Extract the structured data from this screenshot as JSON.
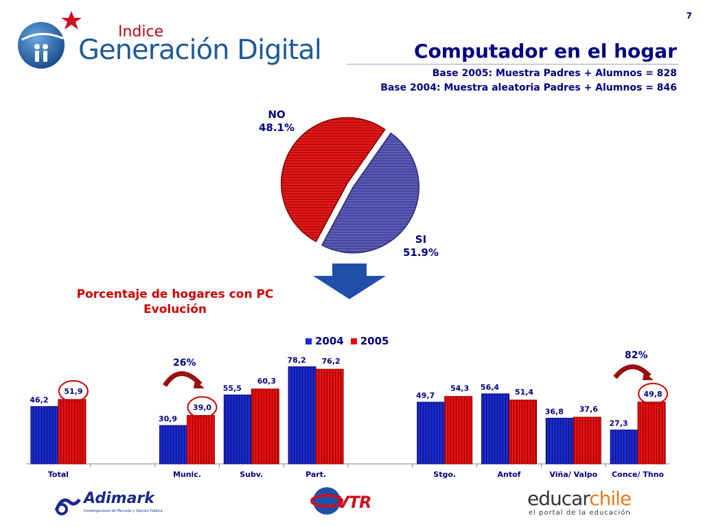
{
  "page": {
    "number": "7"
  },
  "header": {
    "logo_small": "Indice",
    "logo_big": "Generación Digital",
    "title": "Computador en el hogar",
    "subtitle_1": "Base 2005: Muestra Padres + Alumnos = 828",
    "subtitle_2": "Base 2004: Muestra aleatoria Padres + Alumnos = 846"
  },
  "pie": {
    "no_label": "NO",
    "no_value": "48.1%",
    "si_label": "SI",
    "si_value": "51.9%"
  },
  "bar_section": {
    "heading_1": "Porcentaje de hogares con PC",
    "heading_2": "Evolución",
    "growth_left": "26%",
    "growth_right": "82%"
  },
  "colors": {
    "series_2004": "#1a2ad0",
    "series_2005": "#e01010",
    "pie_no": "#5a5ab4",
    "pie_si": "#d81818",
    "title_navy": "#000080",
    "heading_red": "#cc0000"
  },
  "chart_data": [
    {
      "type": "pie",
      "slices": [
        {
          "label": "NO",
          "value": 48.1
        },
        {
          "label": "SI",
          "value": 51.9
        }
      ]
    },
    {
      "type": "bar",
      "title": "Porcentaje de hogares con PC",
      "subtitle": "Evolución",
      "categories": [
        "Total",
        "",
        "Munic.",
        "Subv.",
        "Part.",
        "",
        "Stgo.",
        "Antof",
        "Viña/ Valpo",
        "Conce/ Thno"
      ],
      "series": [
        {
          "name": "2004",
          "values": [
            46.2,
            null,
            30.9,
            55.5,
            78.2,
            null,
            49.7,
            56.4,
            36.8,
            27.3
          ]
        },
        {
          "name": "2005",
          "values": [
            51.9,
            null,
            39.0,
            60.3,
            76.2,
            null,
            54.3,
            51.4,
            37.6,
            49.8
          ]
        }
      ],
      "labels_2004": [
        "46,2",
        "",
        "30,9",
        "55,5",
        "78,2",
        "",
        "49,7",
        "56,4",
        "36,8",
        "27,3"
      ],
      "labels_2005": [
        "51,9",
        "",
        "39,0",
        "60,3",
        "76,2",
        "",
        "54,3",
        "51,4",
        "37,6",
        "49,8"
      ],
      "ylim": [
        0,
        100
      ],
      "grid": false,
      "legend_position": "top-center",
      "highlighted_values": [
        "51,9",
        "39,0",
        "49,8"
      ]
    }
  ]
}
